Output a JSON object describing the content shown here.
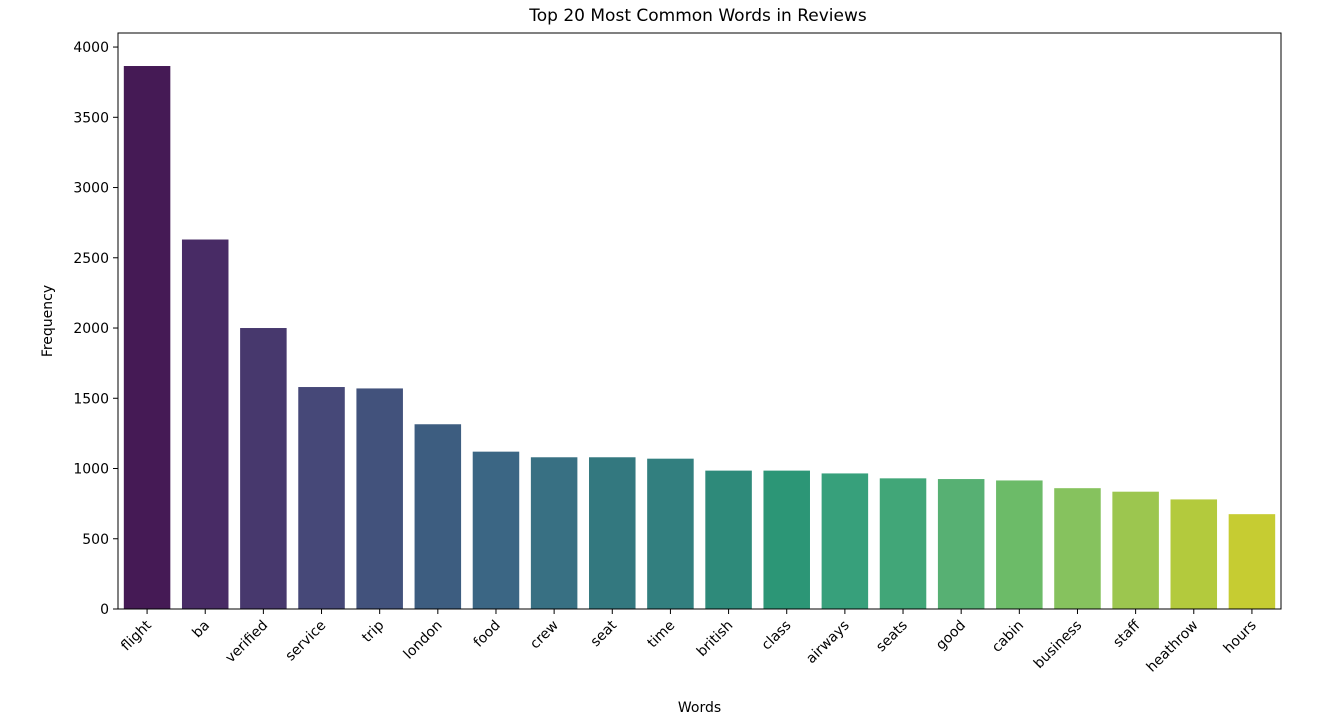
{
  "chart_data": {
    "type": "bar",
    "title": "Top 20 Most Common Words in Reviews",
    "xlabel": "Words",
    "ylabel": "Frequency",
    "ylim": [
      0,
      4100
    ],
    "yticks": [
      0,
      500,
      1000,
      1500,
      2000,
      2500,
      3000,
      3500,
      4000
    ],
    "grid": false,
    "legend": "none",
    "categories": [
      "flight",
      "ba",
      "verified",
      "service",
      "trip",
      "london",
      "food",
      "crew",
      "seat",
      "time",
      "british",
      "class",
      "airways",
      "seats",
      "good",
      "cabin",
      "business",
      "staff",
      "heathrow",
      "hours"
    ],
    "values": [
      3865,
      2630,
      2000,
      1580,
      1570,
      1315,
      1120,
      1080,
      1080,
      1070,
      985,
      985,
      965,
      930,
      925,
      915,
      860,
      835,
      780,
      675
    ],
    "colors": [
      "#451a55",
      "#482b65",
      "#47386d",
      "#464878",
      "#42527c",
      "#3d5d80",
      "#3b6684",
      "#387083",
      "#33787f",
      "#327f7f",
      "#2e8a7a",
      "#2c9676",
      "#37a07b",
      "#41a678",
      "#57b073",
      "#6cbb68",
      "#86c25e",
      "#9cc64f",
      "#b3ca3d",
      "#c6cc32"
    ]
  }
}
